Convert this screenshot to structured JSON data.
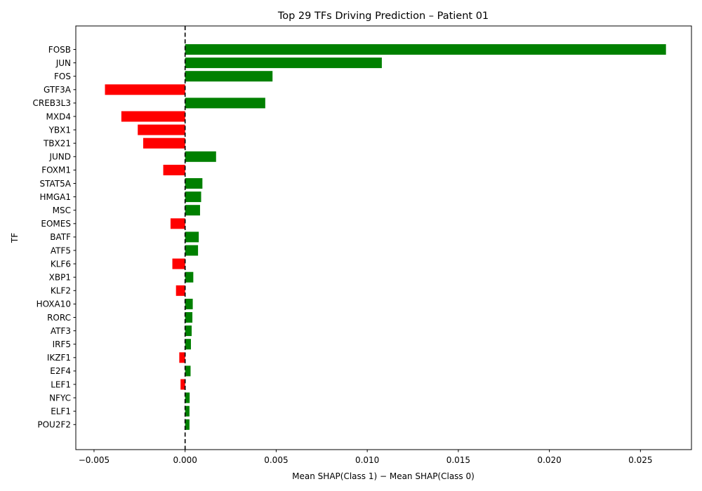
{
  "chart_data": {
    "type": "bar",
    "orientation": "horizontal",
    "title": "Top 29 TFs Driving Prediction – Patient 01",
    "xlabel": "Mean SHAP(Class 1) − Mean SHAP(Class 0)",
    "ylabel": "TF",
    "xlim": [
      -0.006,
      0.0278
    ],
    "xticks": [
      -0.005,
      0,
      0.005,
      0.01,
      0.015,
      0.02,
      0.025
    ],
    "xtick_labels": [
      "−0.005",
      "0.000",
      "0.005",
      "0.010",
      "0.015",
      "0.020",
      "0.025"
    ],
    "grid": false,
    "legend": "none",
    "reference_line": {
      "x": 0,
      "style": "dashed",
      "color": "#000000"
    },
    "positive_color": "#008000",
    "negative_color": "#ff0000",
    "categories": [
      "FOSB",
      "JUN",
      "FOS",
      "GTF3A",
      "CREB3L3",
      "MXD4",
      "YBX1",
      "TBX21",
      "JUND",
      "FOXM1",
      "STAT5A",
      "HMGA1",
      "MSC",
      "EOMES",
      "BATF",
      "ATF5",
      "KLF6",
      "XBP1",
      "KLF2",
      "HOXA10",
      "RORC",
      "ATF3",
      "IRF5",
      "IKZF1",
      "E2F4",
      "LEF1",
      "NFYC",
      "ELF1",
      "POU2F2"
    ],
    "values": [
      0.0264,
      0.0108,
      0.0048,
      -0.0044,
      0.0044,
      -0.0035,
      -0.0026,
      -0.0023,
      0.0017,
      -0.0012,
      0.00095,
      0.00088,
      0.00082,
      -0.0008,
      0.00075,
      0.00071,
      -0.0007,
      0.00045,
      -0.0005,
      0.00042,
      0.0004,
      0.00036,
      0.00032,
      -0.00032,
      0.0003,
      -0.00025,
      0.00025,
      0.00024,
      0.00024
    ]
  }
}
